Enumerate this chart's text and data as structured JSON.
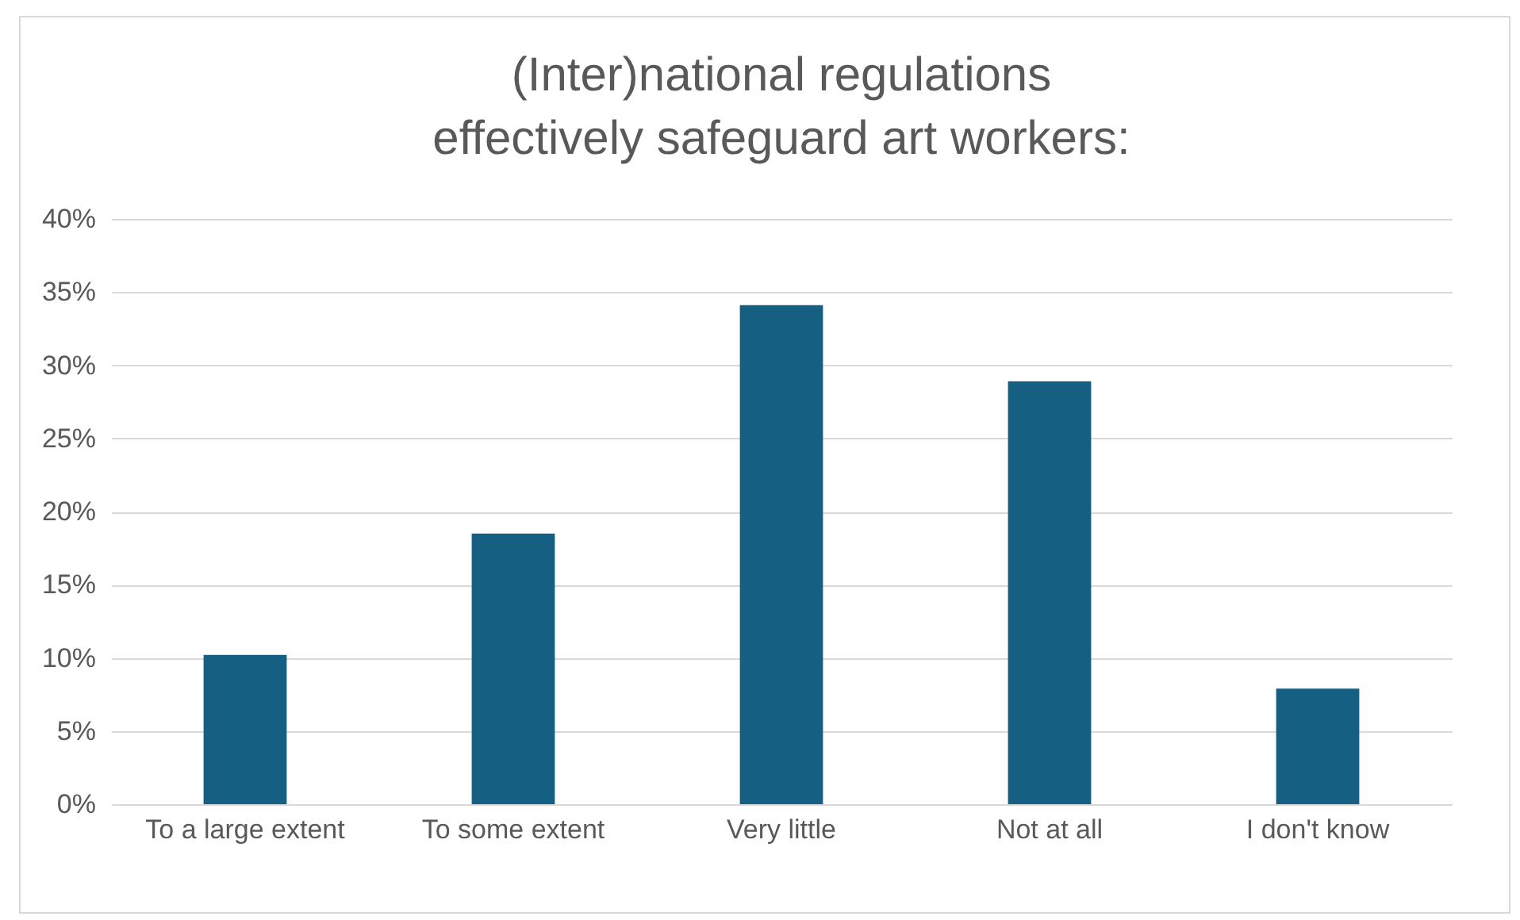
{
  "chart_data": {
    "type": "bar",
    "title": "(Inter)national regulations effectively safeguard art workers:",
    "categories": [
      "To a large extent",
      "To some extent",
      "Very little",
      "Not at all",
      "I don't know"
    ],
    "values": [
      10.2,
      18.5,
      34.1,
      28.9,
      7.9
    ],
    "color": "#155f83",
    "ylim": [
      0,
      40
    ],
    "yticks": [
      {
        "value": 0,
        "label": "0%"
      },
      {
        "value": 5,
        "label": "5%"
      },
      {
        "value": 10,
        "label": "10%"
      },
      {
        "value": 15,
        "label": "15%"
      },
      {
        "value": 20,
        "label": "20%"
      },
      {
        "value": 25,
        "label": "25%"
      },
      {
        "value": 30,
        "label": "30%"
      },
      {
        "value": 35,
        "label": "35%"
      },
      {
        "value": 40,
        "label": "40%"
      }
    ],
    "grid": "y"
  }
}
